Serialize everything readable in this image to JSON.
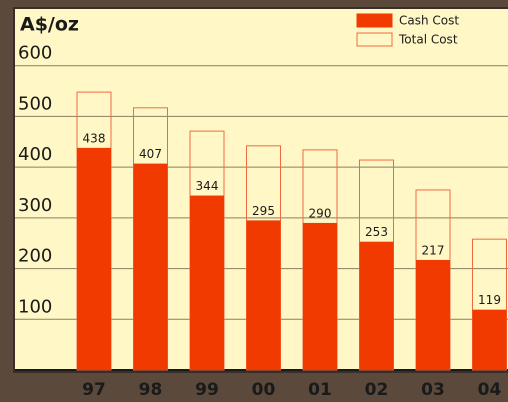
{
  "chart_data": {
    "type": "bar",
    "title": "A$/oz",
    "categories": [
      "97",
      "98",
      "99",
      "00",
      "01",
      "02",
      "03",
      "04"
    ],
    "series": [
      {
        "name": "Cash Cost",
        "color": "#f03a00",
        "values": [
          438,
          407,
          344,
          295,
          290,
          253,
          217,
          119
        ]
      },
      {
        "name": "Total Cost",
        "color": "#f06a40",
        "values": [
          548,
          517,
          471,
          442,
          434,
          414,
          355,
          258
        ]
      }
    ],
    "ylim": [
      0,
      700
    ],
    "yticks": [
      100,
      200,
      300,
      400,
      500,
      600
    ],
    "grid": true,
    "legend": "top-right"
  }
}
